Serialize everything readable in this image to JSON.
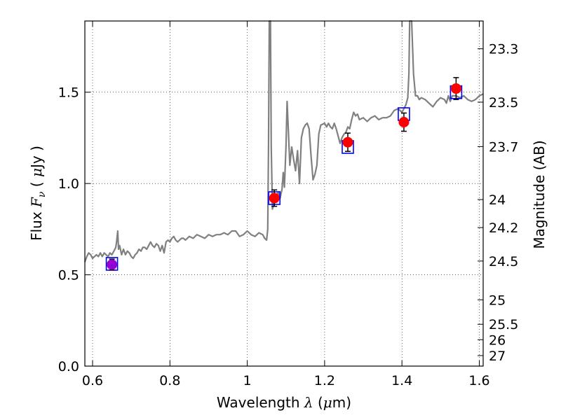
{
  "chart_data": {
    "type": "line",
    "xlabel": {
      "prefix": "Wavelength  ",
      "symbol": "λ",
      "unit_open": " (",
      "unit_mu": "μ",
      "unit_rest": "m)"
    },
    "ylabel": {
      "prefix": "Flux  ",
      "symbol": "F",
      "sub": "ν",
      "unit_open": "  ( ",
      "unit_mu": "μ",
      "unit_rest": "Jy )"
    },
    "y2label": "Magnitude (AB)",
    "xlim": [
      0.58,
      1.61
    ],
    "ylim": [
      0.0,
      1.89
    ],
    "grid": true,
    "grid_style": "dotted",
    "x_ticks": [
      {
        "value": 0.6,
        "label": "0.6"
      },
      {
        "value": 0.8,
        "label": "0.8"
      },
      {
        "value": 1.0,
        "label": "1"
      },
      {
        "value": 1.2,
        "label": "1.2"
      },
      {
        "value": 1.4,
        "label": "1.4"
      },
      {
        "value": 1.6,
        "label": "1.6"
      }
    ],
    "y_ticks": [
      {
        "value": 0.0,
        "label": "0.0"
      },
      {
        "value": 0.5,
        "label": "0.5"
      },
      {
        "value": 1.0,
        "label": "1.0"
      },
      {
        "value": 1.5,
        "label": "1.5"
      }
    ],
    "y2_ticks": [
      {
        "value": 23.3,
        "label": "23.3"
      },
      {
        "value": 23.5,
        "label": "23.5"
      },
      {
        "value": 23.7,
        "label": "23.7"
      },
      {
        "value": 24.0,
        "label": "24"
      },
      {
        "value": 24.2,
        "label": "24.2"
      },
      {
        "value": 24.5,
        "label": "24.5"
      },
      {
        "value": 25.0,
        "label": "25"
      },
      {
        "value": 25.5,
        "label": "25.5"
      },
      {
        "value": 26.0,
        "label": "26"
      },
      {
        "value": 27.0,
        "label": "27"
      }
    ],
    "series": [
      {
        "kind": "line",
        "color": "#808080",
        "points": [
          [
            0.58,
            0.57
          ],
          [
            0.585,
            0.6
          ],
          [
            0.59,
            0.62
          ],
          [
            0.595,
            0.61
          ],
          [
            0.6,
            0.59
          ],
          [
            0.605,
            0.6
          ],
          [
            0.61,
            0.61
          ],
          [
            0.615,
            0.6
          ],
          [
            0.62,
            0.62
          ],
          [
            0.625,
            0.6
          ],
          [
            0.63,
            0.62
          ],
          [
            0.635,
            0.61
          ],
          [
            0.64,
            0.6
          ],
          [
            0.645,
            0.62
          ],
          [
            0.65,
            0.61
          ],
          [
            0.655,
            0.63
          ],
          [
            0.66,
            0.65
          ],
          [
            0.662,
            0.68
          ],
          [
            0.665,
            0.74
          ],
          [
            0.667,
            0.64
          ],
          [
            0.67,
            0.66
          ],
          [
            0.675,
            0.61
          ],
          [
            0.68,
            0.64
          ],
          [
            0.685,
            0.61
          ],
          [
            0.69,
            0.63
          ],
          [
            0.695,
            0.62
          ],
          [
            0.7,
            0.6
          ],
          [
            0.705,
            0.59
          ],
          [
            0.71,
            0.61
          ],
          [
            0.715,
            0.62
          ],
          [
            0.72,
            0.64
          ],
          [
            0.725,
            0.63
          ],
          [
            0.73,
            0.65
          ],
          [
            0.735,
            0.65
          ],
          [
            0.74,
            0.64
          ],
          [
            0.745,
            0.66
          ],
          [
            0.75,
            0.68
          ],
          [
            0.755,
            0.66
          ],
          [
            0.76,
            0.65
          ],
          [
            0.765,
            0.67
          ],
          [
            0.77,
            0.66
          ],
          [
            0.775,
            0.63
          ],
          [
            0.78,
            0.66
          ],
          [
            0.785,
            0.62
          ],
          [
            0.79,
            0.68
          ],
          [
            0.795,
            0.69
          ],
          [
            0.8,
            0.68
          ],
          [
            0.805,
            0.7
          ],
          [
            0.81,
            0.71
          ],
          [
            0.815,
            0.69
          ],
          [
            0.82,
            0.68
          ],
          [
            0.825,
            0.69
          ],
          [
            0.83,
            0.7
          ],
          [
            0.835,
            0.7
          ],
          [
            0.84,
            0.69
          ],
          [
            0.85,
            0.71
          ],
          [
            0.86,
            0.7
          ],
          [
            0.87,
            0.72
          ],
          [
            0.88,
            0.71
          ],
          [
            0.89,
            0.7
          ],
          [
            0.9,
            0.72
          ],
          [
            0.91,
            0.71
          ],
          [
            0.92,
            0.72
          ],
          [
            0.93,
            0.72
          ],
          [
            0.94,
            0.73
          ],
          [
            0.95,
            0.72
          ],
          [
            0.96,
            0.74
          ],
          [
            0.97,
            0.74
          ],
          [
            0.98,
            0.71
          ],
          [
            0.99,
            0.72
          ],
          [
            1.0,
            0.74
          ],
          [
            1.01,
            0.72
          ],
          [
            1.02,
            0.71
          ],
          [
            1.03,
            0.73
          ],
          [
            1.04,
            0.72
          ],
          [
            1.045,
            0.7
          ],
          [
            1.05,
            0.69
          ],
          [
            1.053,
            0.75
          ],
          [
            1.055,
            1.2
          ],
          [
            1.057,
            1.89
          ],
          [
            1.06,
            1.89
          ],
          [
            1.062,
            1.2
          ],
          [
            1.065,
            0.86
          ],
          [
            1.07,
            0.9
          ],
          [
            1.075,
            0.93
          ],
          [
            1.08,
            0.95
          ],
          [
            1.085,
            0.92
          ],
          [
            1.09,
            0.97
          ],
          [
            1.093,
            1.06
          ],
          [
            1.096,
            0.98
          ],
          [
            1.1,
            1.2
          ],
          [
            1.103,
            1.45
          ],
          [
            1.106,
            1.3
          ],
          [
            1.11,
            1.1
          ],
          [
            1.115,
            1.2
          ],
          [
            1.12,
            1.13
          ],
          [
            1.125,
            1.07
          ],
          [
            1.13,
            1.18
          ],
          [
            1.135,
            1.0
          ],
          [
            1.14,
            1.25
          ],
          [
            1.145,
            1.3
          ],
          [
            1.15,
            1.32
          ],
          [
            1.155,
            1.33
          ],
          [
            1.16,
            1.3
          ],
          [
            1.165,
            1.15
          ],
          [
            1.17,
            1.02
          ],
          [
            1.175,
            1.05
          ],
          [
            1.18,
            1.1
          ],
          [
            1.185,
            1.27
          ],
          [
            1.19,
            1.32
          ],
          [
            1.2,
            1.33
          ],
          [
            1.205,
            1.31
          ],
          [
            1.21,
            1.33
          ],
          [
            1.215,
            1.31
          ],
          [
            1.22,
            1.3
          ],
          [
            1.225,
            1.33
          ],
          [
            1.23,
            1.3
          ],
          [
            1.235,
            1.26
          ],
          [
            1.24,
            1.22
          ],
          [
            1.245,
            1.25
          ],
          [
            1.25,
            1.27
          ],
          [
            1.255,
            1.28
          ],
          [
            1.26,
            1.31
          ],
          [
            1.265,
            1.3
          ],
          [
            1.27,
            1.35
          ],
          [
            1.275,
            1.39
          ],
          [
            1.28,
            1.37
          ],
          [
            1.285,
            1.38
          ],
          [
            1.29,
            1.35
          ],
          [
            1.3,
            1.36
          ],
          [
            1.31,
            1.34
          ],
          [
            1.32,
            1.36
          ],
          [
            1.33,
            1.37
          ],
          [
            1.34,
            1.35
          ],
          [
            1.35,
            1.36
          ],
          [
            1.36,
            1.36
          ],
          [
            1.37,
            1.37
          ],
          [
            1.38,
            1.4
          ],
          [
            1.39,
            1.41
          ],
          [
            1.395,
            1.4
          ],
          [
            1.4,
            1.39
          ],
          [
            1.405,
            1.41
          ],
          [
            1.41,
            1.43
          ],
          [
            1.415,
            1.47
          ],
          [
            1.418,
            1.6
          ],
          [
            1.42,
            1.89
          ],
          [
            1.425,
            1.89
          ],
          [
            1.43,
            1.6
          ],
          [
            1.435,
            1.48
          ],
          [
            1.44,
            1.48
          ],
          [
            1.445,
            1.46
          ],
          [
            1.45,
            1.47
          ],
          [
            1.46,
            1.46
          ],
          [
            1.47,
            1.44
          ],
          [
            1.48,
            1.42
          ],
          [
            1.49,
            1.45
          ],
          [
            1.5,
            1.47
          ],
          [
            1.51,
            1.46
          ],
          [
            1.515,
            1.44
          ],
          [
            1.52,
            1.48
          ],
          [
            1.525,
            1.45
          ],
          [
            1.53,
            1.48
          ],
          [
            1.54,
            1.48
          ],
          [
            1.55,
            1.47
          ],
          [
            1.56,
            1.48
          ],
          [
            1.57,
            1.46
          ],
          [
            1.58,
            1.45
          ],
          [
            1.59,
            1.46
          ],
          [
            1.6,
            1.48
          ],
          [
            1.61,
            1.49
          ]
        ]
      }
    ],
    "model_points": [
      {
        "x": 0.65,
        "y": 0.56
      },
      {
        "x": 1.07,
        "y": 0.92
      },
      {
        "x": 1.26,
        "y": 1.2
      },
      {
        "x": 1.405,
        "y": 1.38
      },
      {
        "x": 1.54,
        "y": 1.5
      }
    ],
    "observed_points": [
      {
        "x": 0.65,
        "y": 0.556,
        "yerr": 0.03,
        "color": "#9400d3"
      },
      {
        "x": 1.07,
        "y": 0.92,
        "yerr": 0.045,
        "color": "#ff0000"
      },
      {
        "x": 1.26,
        "y": 1.226,
        "yerr": 0.05,
        "color": "#ff0000"
      },
      {
        "x": 1.405,
        "y": 1.336,
        "yerr": 0.05,
        "color": "#ff0000"
      },
      {
        "x": 1.54,
        "y": 1.52,
        "yerr": 0.06,
        "color": "#ff0000"
      }
    ]
  }
}
